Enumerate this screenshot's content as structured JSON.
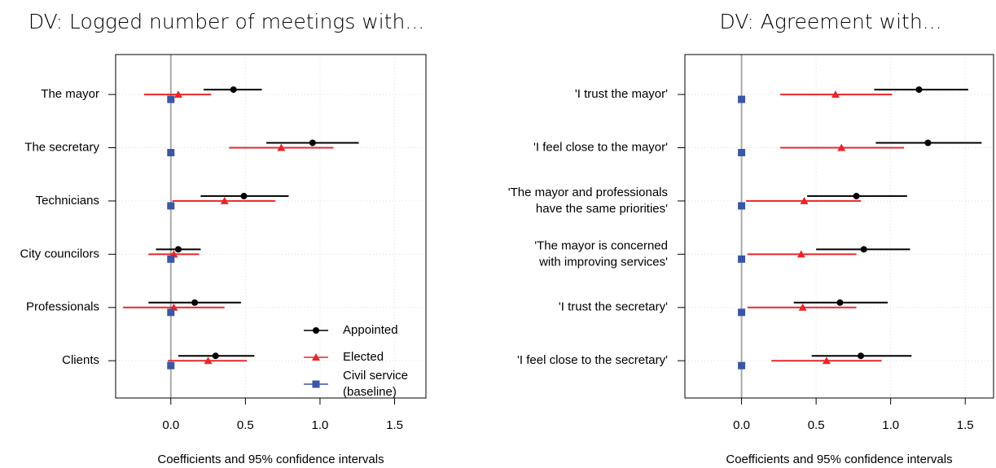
{
  "chart_data": [
    {
      "type": "coefficient",
      "title": "DV: Logged number of meetings with...",
      "xlabel": "Coefficients and 95% confidence intervals",
      "categories": [
        "The mayor",
        "The secretary",
        "Technicians",
        "City councilors",
        "Professionals",
        "Clients"
      ],
      "xlim": [
        -0.37,
        1.71
      ],
      "xticks": [
        {
          "value": 0,
          "label": "0.0"
        },
        0.5,
        {
          "value": 1,
          "label": "1.0"
        },
        1.5
      ],
      "grid": true,
      "legend": "bottom-right",
      "series": [
        {
          "name": "Appointed",
          "color": "#000000",
          "marker": "circle",
          "values": [
            0.42,
            0.95,
            0.49,
            0.05,
            0.16,
            0.3
          ],
          "ci_low": [
            0.22,
            0.64,
            0.2,
            -0.1,
            -0.15,
            0.05
          ],
          "ci_high": [
            0.61,
            1.26,
            0.79,
            0.2,
            0.47,
            0.56
          ]
        },
        {
          "name": "Elected",
          "color": "#e8262a",
          "marker": "triangle",
          "values": [
            0.05,
            0.74,
            0.36,
            0.02,
            0.02,
            0.25
          ],
          "ci_low": [
            -0.18,
            0.39,
            0.01,
            -0.15,
            -0.32,
            -0.02
          ],
          "ci_high": [
            0.27,
            1.09,
            0.7,
            0.19,
            0.36,
            0.51
          ]
        },
        {
          "name": "Civil service\n(baseline)",
          "color": "#3a56a5",
          "marker": "square",
          "values": [
            0,
            0,
            0,
            0,
            0,
            0
          ]
        }
      ]
    },
    {
      "type": "coefficient",
      "title": "DV: Agreement with...",
      "xlabel": "Coefficients and 95% confidence intervals",
      "categories": [
        "'I trust the mayor'",
        "'I feel close to the mayor'",
        "'The mayor and professionals\nhave the same priorities'",
        "'The mayor is concerned\nwith improving services'",
        "'I trust the secretary'",
        "'I feel close to the secretary'"
      ],
      "xlim": [
        -0.38,
        1.69
      ],
      "xticks": [
        {
          "value": 0,
          "label": "0.0"
        },
        0.5,
        {
          "value": 1,
          "label": "1.0"
        },
        1.5
      ],
      "grid": true,
      "legend": false,
      "series": [
        {
          "color": "#000000",
          "marker": "circle",
          "values": [
            1.19,
            1.25,
            0.77,
            0.82,
            0.66,
            0.8
          ],
          "ci_low": [
            0.89,
            0.9,
            0.44,
            0.5,
            0.35,
            0.47
          ],
          "ci_high": [
            1.52,
            1.61,
            1.11,
            1.13,
            0.98,
            1.14
          ]
        },
        {
          "color": "#e8262a",
          "marker": "triangle",
          "values": [
            0.63,
            0.67,
            0.42,
            0.4,
            0.41,
            0.57
          ],
          "ci_low": [
            0.26,
            0.26,
            0.03,
            0.04,
            0.04,
            0.2
          ],
          "ci_high": [
            1.01,
            1.09,
            0.8,
            0.77,
            0.77,
            0.94
          ]
        },
        {
          "color": "#3a56a5",
          "marker": "square",
          "values": [
            0,
            0,
            0,
            0,
            0,
            0
          ]
        }
      ]
    }
  ]
}
